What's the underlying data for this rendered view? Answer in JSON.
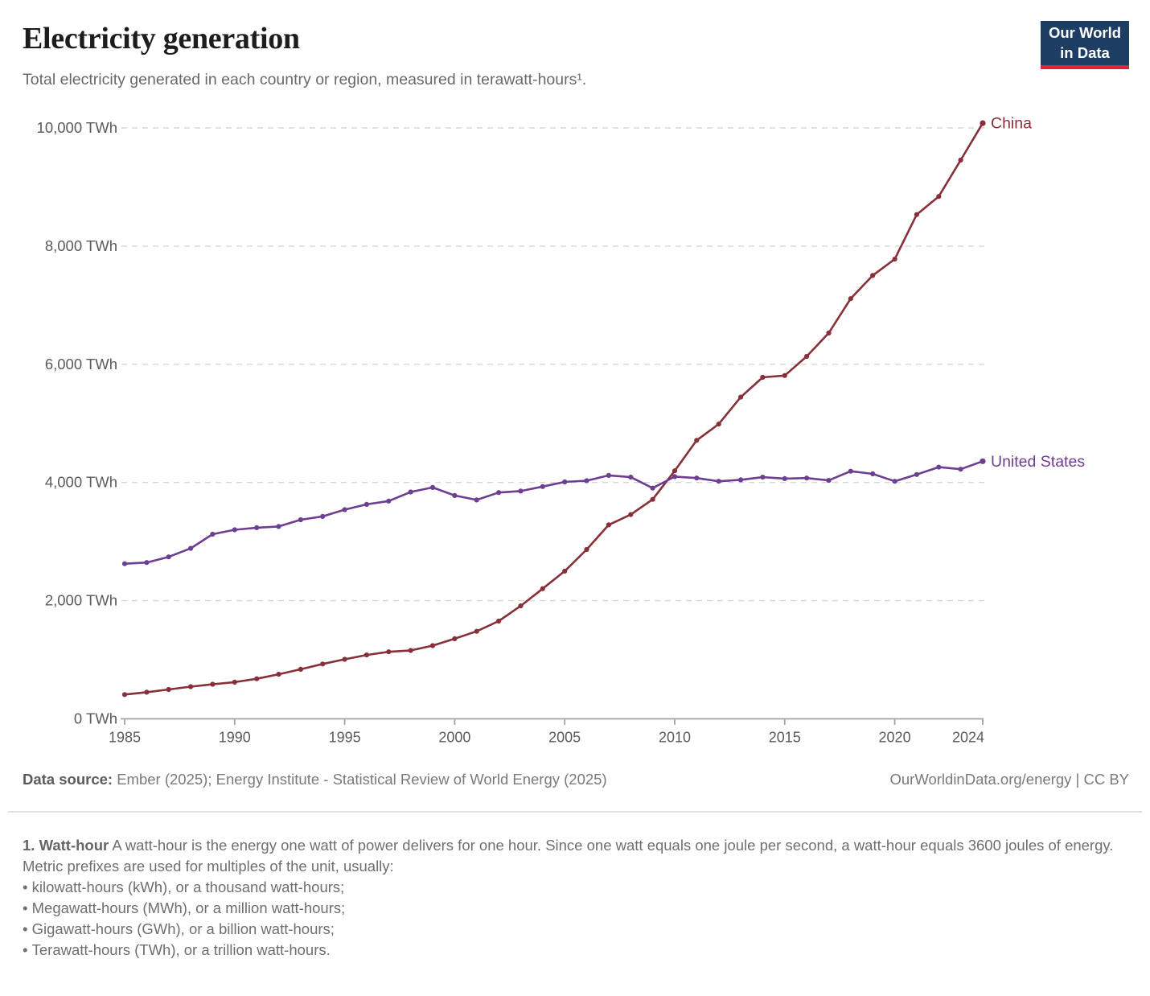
{
  "header": {
    "title": "Electricity generation",
    "subtitle": "Total electricity generated in each country or region, measured in terawatt-hours¹.",
    "logo": {
      "line1": "Our World",
      "line2": "in Data"
    }
  },
  "chart_data": {
    "type": "line",
    "title": "Electricity generation",
    "unit": "TWh",
    "x": [
      1985,
      1986,
      1987,
      1988,
      1989,
      1990,
      1991,
      1992,
      1993,
      1994,
      1995,
      1996,
      1997,
      1998,
      1999,
      2000,
      2001,
      2002,
      2003,
      2004,
      2005,
      2006,
      2007,
      2008,
      2009,
      2010,
      2011,
      2012,
      2013,
      2014,
      2015,
      2016,
      2017,
      2018,
      2019,
      2020,
      2021,
      2022,
      2023,
      2024
    ],
    "series": [
      {
        "name": "China",
        "color": "#883039",
        "values": [
          411,
          450,
          497,
          545,
          585,
          621,
          678,
          754,
          839,
          928,
          1007,
          1081,
          1134,
          1157,
          1239,
          1356,
          1481,
          1654,
          1911,
          2203,
          2500,
          2866,
          3282,
          3457,
          3714,
          4197,
          4713,
          4988,
          5445,
          5780,
          5810,
          6133,
          6529,
          7111,
          7503,
          7779,
          8534,
          8840,
          9456,
          10080
        ]
      },
      {
        "name": "United States",
        "color": "#6D3E91",
        "values": [
          2625,
          2645,
          2740,
          2885,
          3125,
          3200,
          3235,
          3255,
          3370,
          3425,
          3540,
          3630,
          3685,
          3840,
          3915,
          3780,
          3705,
          3830,
          3855,
          3930,
          4010,
          4030,
          4120,
          4090,
          3905,
          4100,
          4075,
          4020,
          4045,
          4090,
          4065,
          4075,
          4035,
          4190,
          4145,
          4020,
          4135,
          4260,
          4225,
          4360
        ]
      }
    ],
    "ylim": [
      0,
      10000
    ],
    "yticks": [
      0,
      2000,
      4000,
      6000,
      8000,
      10000
    ],
    "ytick_suffix": " TWh",
    "xticks": [
      1985,
      1990,
      1995,
      2000,
      2005,
      2010,
      2015,
      2020,
      2024
    ],
    "grid": "horizontal-dashed",
    "legend_position": "line-end-labels",
    "colors": {
      "gridline": "#d7d7d7",
      "axis": "#a3a3a3",
      "tick_text": "#5b5b5b"
    }
  },
  "footer": {
    "source_label": "Data source:",
    "source_text": " Ember (2025); Energy Institute - Statistical Review of World Energy (2025)",
    "link_text": "OurWorldinData.org/energy | CC BY"
  },
  "footnote": {
    "term": "1. Watt-hour",
    "definition": " A watt-hour is the energy one watt of power delivers for one hour. Since one watt equals one joule per second, a watt-hour equals 3600 joules of energy.",
    "prefix_intro": "Metric prefixes are used for multiples of the unit, usually:",
    "bullets": [
      "kilowatt-hours (kWh), or a thousand watt-hours;",
      "Megawatt-hours (MWh), or a million watt-hours;",
      "Gigawatt-hours (GWh), or a billion watt-hours;",
      "Terawatt-hours (TWh), or a trillion watt-hours."
    ]
  }
}
